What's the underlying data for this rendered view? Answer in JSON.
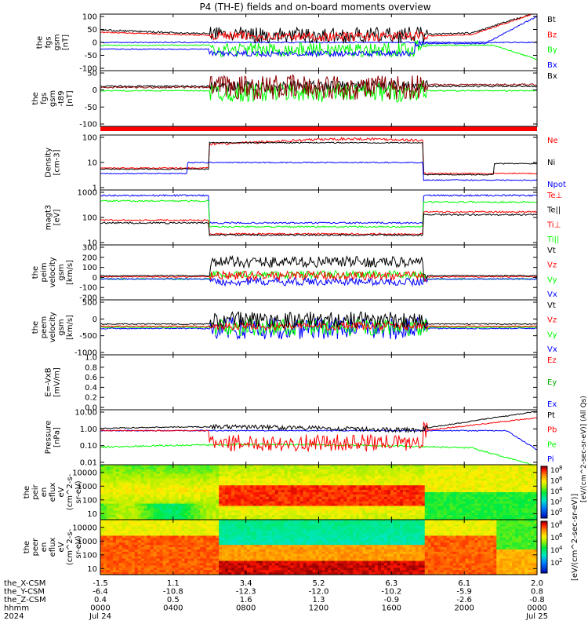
{
  "title": "P4 (TH-E) fields and on-board moments overview",
  "chart_data": {
    "type": "line",
    "panels": [
      {
        "id": "fgs_gsm",
        "ylabel": [
          "the",
          "fgs",
          "gsm",
          "[nT]"
        ],
        "yticks": [
          "100",
          "50",
          "0",
          "-50",
          "-100"
        ],
        "ylim": [
          -110,
          110
        ],
        "series": [
          {
            "name": "Bt",
            "color": "#000000"
          },
          {
            "name": "Bz",
            "color": "#ff0000"
          },
          {
            "name": "By",
            "color": "#00ff00"
          },
          {
            "name": "Bx",
            "color": "#0000ff"
          }
        ]
      },
      {
        "id": "fgs_gsm_t89",
        "ylabel": [
          "the",
          "fgs",
          "gsm",
          "-t89",
          "[nT]"
        ],
        "yticks": [
          "50",
          "0",
          "-50",
          "-100"
        ],
        "ylim": [
          -130,
          70
        ],
        "series": [
          {
            "name": "Bx",
            "color": "#000000"
          }
        ]
      },
      {
        "id": "density",
        "ylabel": [
          "Density",
          "[cm-3]"
        ],
        "yticks": [
          "100",
          "10",
          "1"
        ],
        "ylim": [
          0.3,
          150
        ],
        "scale": "log",
        "series": [
          {
            "name": "Ne",
            "color": "#ff0000"
          },
          {
            "name": "Ni",
            "color": "#000000"
          },
          {
            "name": "Npot",
            "color": "#0000ff"
          }
        ]
      },
      {
        "id": "temperature",
        "ylabel": [
          "magt3",
          "[eV]"
        ],
        "yticks": [
          "1000",
          "100",
          "10"
        ],
        "ylim": [
          5,
          3000
        ],
        "scale": "log",
        "series": [
          {
            "name": "Te⊥",
            "color": "#ff0000"
          },
          {
            "name": "Te||",
            "color": "#000000"
          },
          {
            "name": "Ti⊥",
            "color": "#ff0000"
          },
          {
            "name": "Ti||",
            "color": "#00ff00"
          }
        ]
      },
      {
        "id": "peim_velocity",
        "ylabel": [
          "the",
          "peim",
          "velocity",
          "gsm",
          "[km/s]"
        ],
        "yticks": [
          "300",
          "200",
          "100",
          "0",
          "-100",
          "-200"
        ],
        "ylim": [
          -220,
          330
        ],
        "series": [
          {
            "name": "Vt",
            "color": "#000000"
          },
          {
            "name": "Vz",
            "color": "#ff0000"
          },
          {
            "name": "Vy",
            "color": "#00ff00"
          },
          {
            "name": "Vx",
            "color": "#0000ff"
          }
        ]
      },
      {
        "id": "peem_velocity",
        "ylabel": [
          "the",
          "peem",
          "velocity",
          "gsm",
          "[km/s]"
        ],
        "yticks": [
          "500",
          "0",
          "-500",
          "-1000"
        ],
        "ylim": [
          -1000,
          1000
        ],
        "series": [
          {
            "name": "Vt",
            "color": "#000000"
          },
          {
            "name": "Vz",
            "color": "#ff0000"
          },
          {
            "name": "Vy",
            "color": "#00ff00"
          },
          {
            "name": "Vx",
            "color": "#0000ff"
          }
        ]
      },
      {
        "id": "efield",
        "ylabel": [
          "E=-VxB",
          "[mV/m]"
        ],
        "yticks": [
          "1.0",
          "0.8",
          "0.6",
          "0.4",
          "0.2",
          "0.0"
        ],
        "ylim": [
          0,
          1
        ],
        "series": [
          {
            "name": "Ez",
            "color": "#ff0000"
          },
          {
            "name": "Ey",
            "color": "#00aa00"
          },
          {
            "name": "Ex",
            "color": "#0000ff"
          }
        ]
      },
      {
        "id": "pressure",
        "ylabel": [
          "Pressure",
          "[nPa]"
        ],
        "yticks": [
          "10.00",
          "1.00",
          "0.10",
          "0.01"
        ],
        "ylim": [
          0.01,
          12
        ],
        "scale": "log",
        "series": [
          {
            "name": "Pt",
            "color": "#000000"
          },
          {
            "name": "Pb",
            "color": "#ff0000"
          },
          {
            "name": "Pe",
            "color": "#00ff00"
          },
          {
            "name": "Pi",
            "color": "#0000ff"
          }
        ]
      },
      {
        "id": "peir_eflux",
        "ylabel": [
          "the",
          "peir",
          "en",
          "eflux",
          "eV",
          "(cm^2-s-",
          "sr-eV)"
        ],
        "yticks": [
          "10000",
          "1000",
          "100",
          "10"
        ],
        "type": "spectrogram"
      },
      {
        "id": "peer_eflux",
        "ylabel": [
          "the",
          "peer",
          "en",
          "eflux",
          "eV",
          "(cm^2-s-",
          "sr-eV)"
        ],
        "yticks": [
          "10000",
          "1000",
          "100",
          "10"
        ],
        "type": "spectrogram"
      }
    ],
    "colorbars": [
      {
        "label": "[eV/(cm^2-sec-sr-eV)]",
        "exponents": [
          "8",
          "6",
          "4",
          "2",
          "0"
        ]
      },
      {
        "label": "[eV/(cm^2-sec-sr-eV)] (All Qs)",
        "exponents": [
          "8",
          "6",
          "4",
          "2"
        ]
      }
    ],
    "x_axis": {
      "rows": [
        {
          "label": "the_X-CSM",
          "values": [
            "-1.5",
            "1.1",
            "3.4",
            "5.2",
            "6.3",
            "6.1",
            "2.0"
          ]
        },
        {
          "label": "the_Y-CSM",
          "values": [
            "-6.4",
            "-10.8",
            "-12.3",
            "-12.0",
            "-10.2",
            "-5.9",
            "0.8"
          ]
        },
        {
          "label": "the_Z-CSM",
          "values": [
            "0.4",
            "0.5",
            "1.6",
            "1.3",
            "-0.9",
            "-2.6",
            "-0.8"
          ]
        },
        {
          "label": "hhmm",
          "values": [
            "0000",
            "0400",
            "0800",
            "1200",
            "1600",
            "2000",
            "0000"
          ]
        },
        {
          "label": "2024",
          "values": [
            "Jul 24",
            "",
            "",
            "",
            "",
            "",
            "Jul 25"
          ]
        }
      ]
    }
  }
}
